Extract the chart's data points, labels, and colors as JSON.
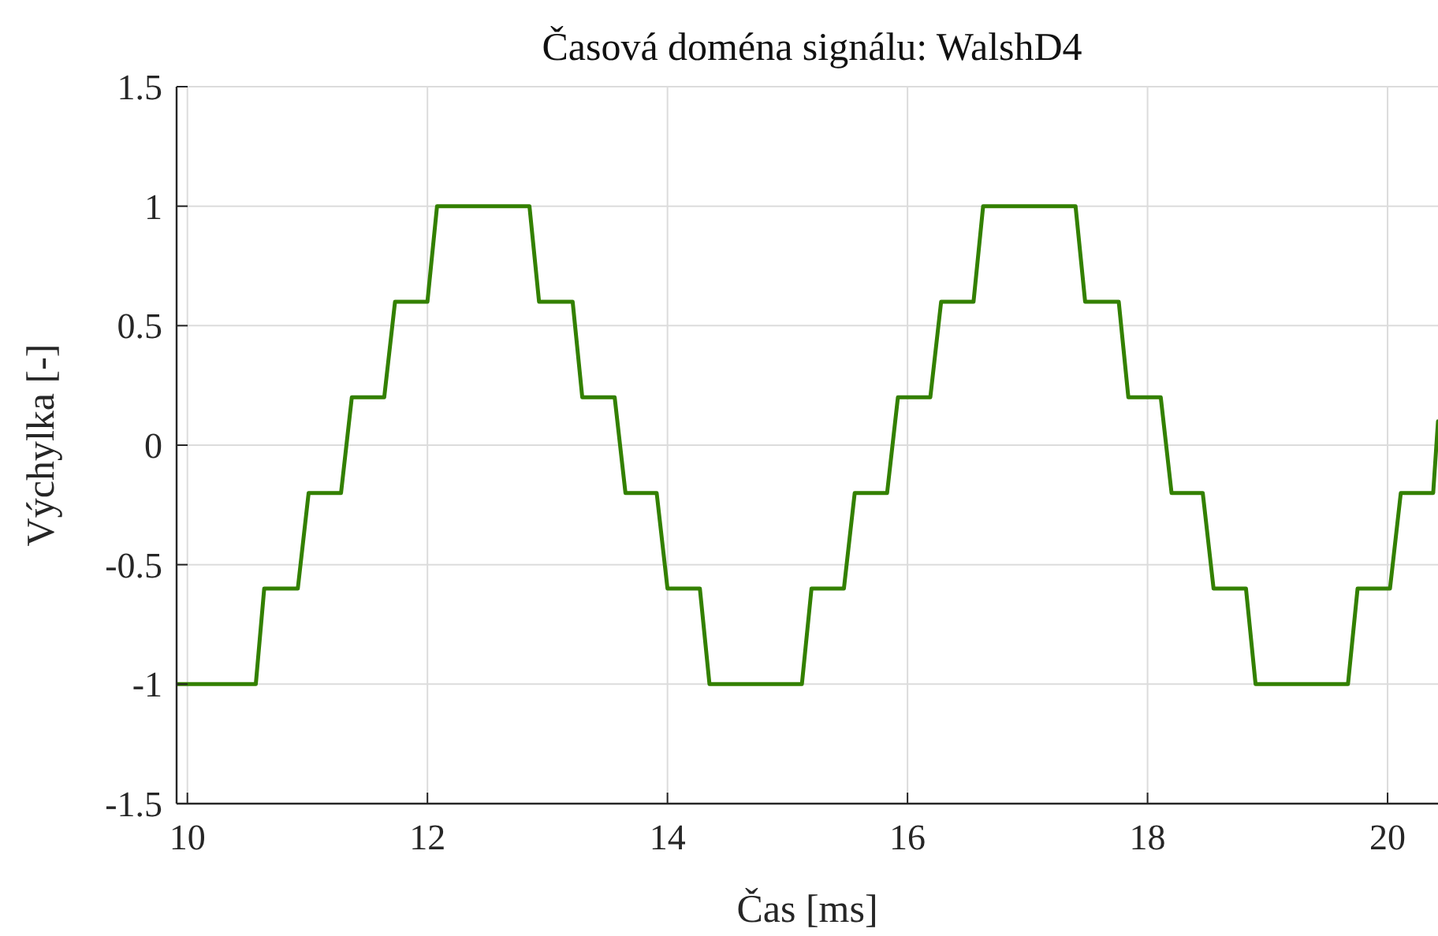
{
  "chart_data": {
    "type": "line",
    "title": "Časová doména signálu: WalshD4",
    "xlabel": "Čas [ms]",
    "ylabel": "Výchylka [-]",
    "xlim": [
      9.91,
      20.42
    ],
    "xticks": [
      10,
      12,
      14,
      16,
      18,
      20
    ],
    "ylim": [
      -1.5,
      1.5
    ],
    "yticks": [
      -1.5,
      -1,
      -0.5,
      0,
      0.5,
      1,
      1.5
    ],
    "grid": true,
    "line_style": "solid",
    "marker": "none",
    "series": [
      {
        "color": "#338000",
        "x": [
          9.91,
          10.57,
          10.64,
          10.92,
          11.01,
          11.28,
          11.37,
          11.64,
          11.73,
          12.0,
          12.08,
          12.85,
          12.93,
          13.21,
          13.29,
          13.56,
          13.65,
          13.91,
          14.0,
          14.27,
          14.35,
          15.12,
          15.2,
          15.47,
          15.56,
          15.83,
          15.92,
          16.19,
          16.28,
          16.55,
          16.63,
          17.4,
          17.48,
          17.76,
          17.84,
          18.11,
          18.2,
          18.46,
          18.55,
          18.82,
          18.9,
          19.67,
          19.75,
          20.02,
          20.11,
          20.38,
          20.42
        ],
        "values": [
          -1,
          -1,
          -0.6,
          -0.6,
          -0.2,
          -0.2,
          0.2,
          0.2,
          0.6,
          0.6,
          1,
          1,
          0.6,
          0.6,
          0.2,
          0.2,
          -0.2,
          -0.2,
          -0.6,
          -0.6,
          -1,
          -1,
          -0.6,
          -0.6,
          -0.2,
          -0.2,
          0.2,
          0.2,
          0.6,
          0.6,
          1,
          1,
          0.6,
          0.6,
          0.2,
          0.2,
          -0.2,
          -0.2,
          -0.6,
          -0.6,
          -1,
          -1,
          -0.6,
          -0.6,
          -0.2,
          -0.2,
          0.1
        ]
      }
    ]
  }
}
